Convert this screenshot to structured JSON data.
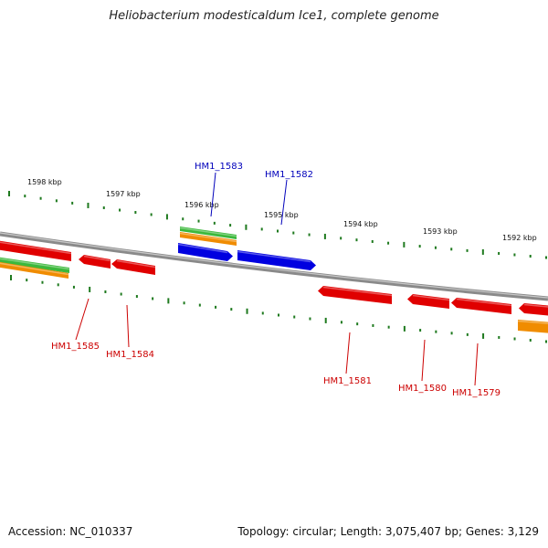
{
  "title": "Heliobacterium modesticaldum Ice1, complete genome",
  "footer": {
    "accession": "Accession: NC_010337",
    "summary": "Topology: circular; Length: 3,075,407 bp; Genes: 3,129"
  },
  "colors": {
    "backbone": "#8a8a8a",
    "tick": "#1f7a1f",
    "gene_red": "#e00000",
    "gene_blue": "#0000e0",
    "gene_green": "#3cb83c",
    "gene_orange": "#f08c00",
    "label_red": "#cc0000",
    "label_blue": "#0000bb"
  },
  "scale_labels": [
    "1598 kbp",
    "1597 kbp",
    "1596 kbp",
    "1595 kbp",
    "1594 kbp",
    "1593 kbp",
    "1592 kbp"
  ],
  "gene_labels": [
    {
      "text": "HM1_1583",
      "color": "blue"
    },
    {
      "text": "HM1_1582",
      "color": "blue"
    },
    {
      "text": "HM1_1585",
      "color": "red"
    },
    {
      "text": "HM1_1584",
      "color": "red"
    },
    {
      "text": "HM1_1581",
      "color": "red"
    },
    {
      "text": "HM1_1580",
      "color": "red"
    },
    {
      "text": "HM1_1579",
      "color": "red"
    }
  ]
}
